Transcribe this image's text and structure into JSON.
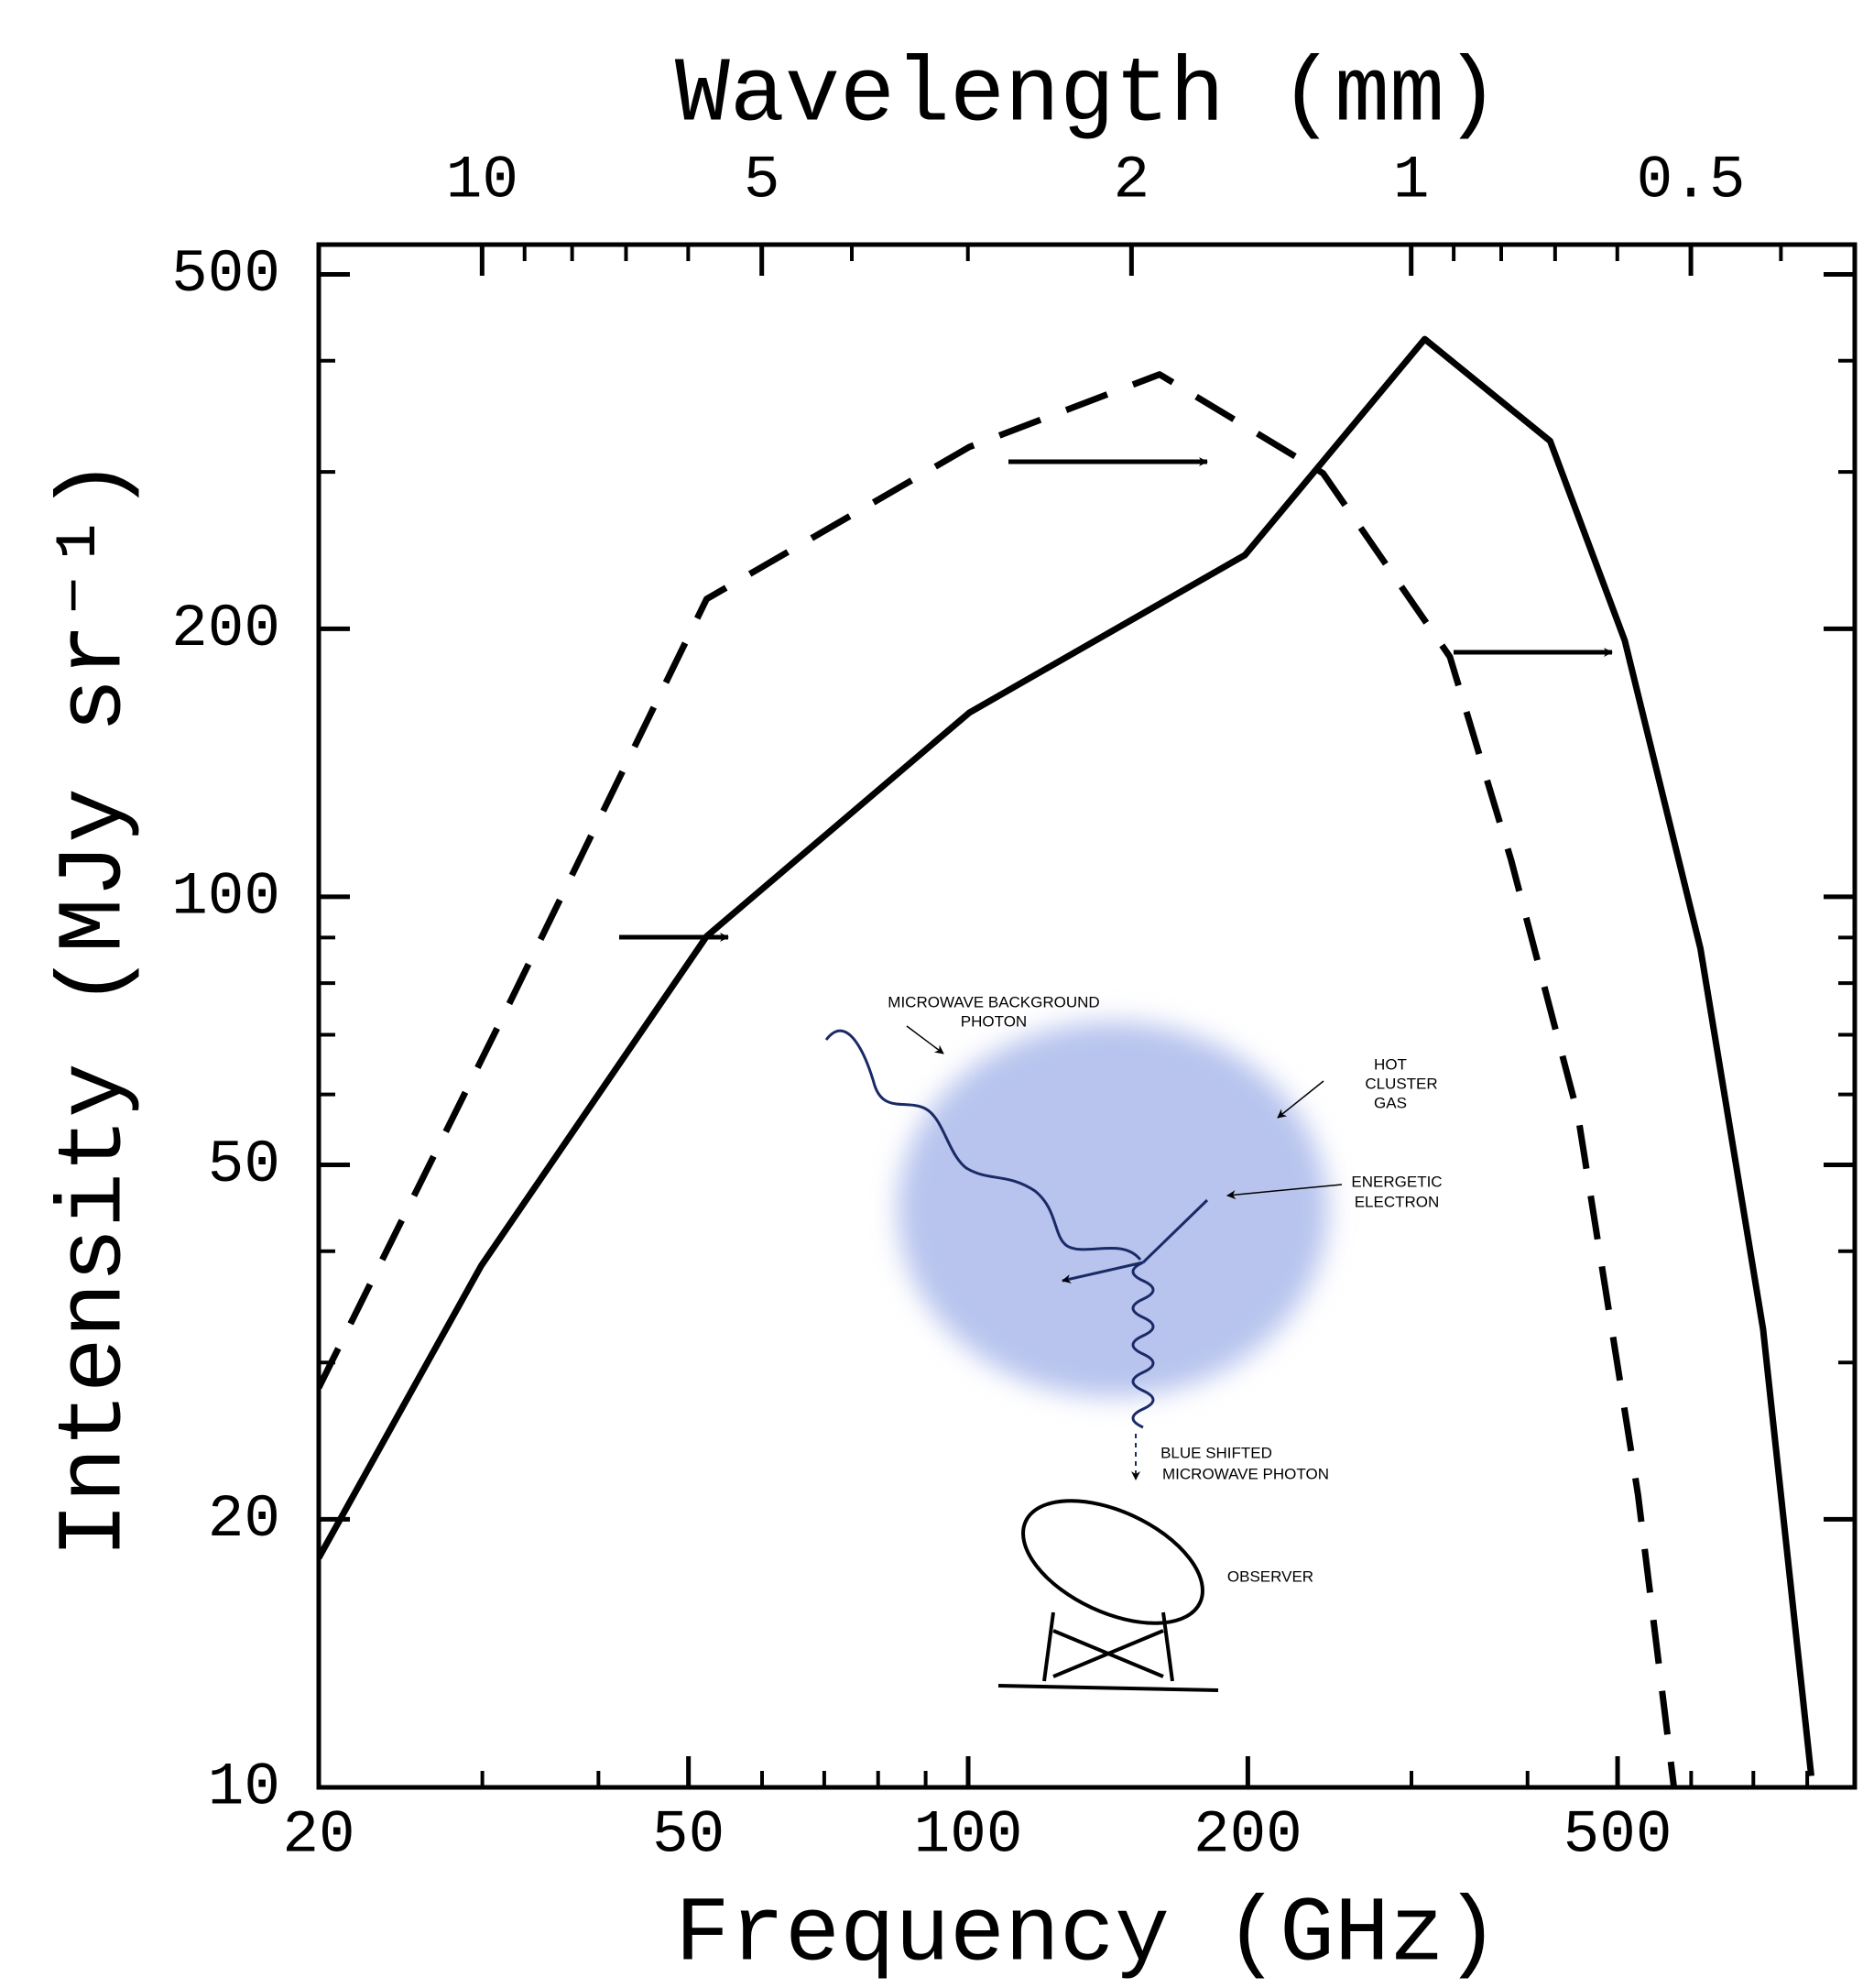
{
  "chart_data": {
    "type": "line",
    "xlabel": "Frequency (GHz)",
    "ylabel": "Intensity (MJy sr⁻¹)",
    "x2label": "Wavelength (mm)",
    "xscale": "log",
    "yscale": "log",
    "x2scale": "log",
    "xlim": [
      20,
      900
    ],
    "ylim": [
      10,
      540
    ],
    "x2lim": [
      14.99,
      0.3331
    ],
    "xticks": [
      20,
      50,
      100,
      200,
      500
    ],
    "xminorticks": [
      30,
      40,
      60,
      70,
      80,
      90,
      300,
      400,
      600,
      700,
      800
    ],
    "yticks": [
      10,
      20,
      50,
      100,
      200,
      500
    ],
    "yminorticks": [
      30,
      40,
      60,
      70,
      80,
      90,
      300,
      400
    ],
    "x2ticks": [
      10,
      5,
      2,
      1,
      0.5
    ],
    "x2minorticks": [
      9,
      8,
      7,
      6,
      4,
      3,
      0.9,
      0.8,
      0.7,
      0.6,
      0.4
    ],
    "series": [
      {
        "color": "#000000",
        "dash": false,
        "x": [
          20,
          29.9,
          52.3,
          100.3,
          198.6,
          310,
          423,
          509,
          614,
          717,
          808
        ],
        "values": [
          18.1,
          38.5,
          90.3,
          161,
          242,
          423,
          325,
          194,
          87.5,
          32.7,
          10.3
        ]
      },
      {
        "color": "#000000",
        "dash": true,
        "x": [
          20,
          31.7,
          52.3,
          100.3,
          160.7,
          241,
          330,
          384,
          453,
          526,
          575
        ],
        "values": [
          28.1,
          74,
          216,
          320,
          386,
          299,
          186,
          110,
          57,
          21.3,
          10
        ]
      }
    ],
    "annotations": [
      "MICROWAVE BACKGROUND",
      "PHOTON",
      "HOT",
      "CLUSTER",
      "GAS",
      "ENERGETIC",
      "ELECTRON",
      "BLUE SHIFTED",
      "MICROWAVE PHOTON",
      "OBSERVER"
    ]
  }
}
